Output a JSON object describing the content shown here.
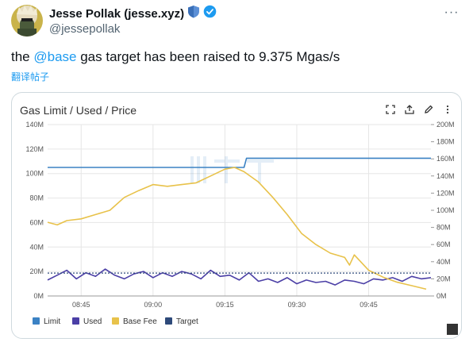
{
  "author": {
    "name": "Jesse Pollak (jesse.xyz)",
    "handle": "@jessepollak"
  },
  "tweet": {
    "prefix": "the ",
    "mention": "@base",
    "suffix": " gas target has been raised to 9.375 Mgas/s",
    "translate": "翻译帖子"
  },
  "colors": {
    "limit": "#3b82c4",
    "used": "#4b3fa6",
    "base_fee": "#e8c24a",
    "target": "#2e4a7a"
  },
  "chart_data": {
    "type": "line",
    "title": "Gas Limit / Used / Price",
    "x_ticks": [
      "08:45",
      "09:00",
      "09:15",
      "09:30",
      "09:45"
    ],
    "x_tick_minutes": [
      15,
      30,
      45,
      60,
      75
    ],
    "xlim_minutes": [
      8,
      88
    ],
    "y_left_ticks": [
      "0M",
      "20M",
      "40M",
      "60M",
      "80M",
      "100M",
      "120M",
      "140M"
    ],
    "y_right_ticks": [
      "0M",
      "20M",
      "40M",
      "60M",
      "80M",
      "100M",
      "120M",
      "140M",
      "160M",
      "180M",
      "200M"
    ],
    "ylim_left": [
      0,
      140000000
    ],
    "ylim_right": [
      0,
      200000000
    ],
    "legend": [
      "Limit",
      "Used",
      "Base Fee",
      "Target"
    ],
    "legend_position": "bottom-left",
    "series": [
      {
        "name": "Limit",
        "axis": "left",
        "x": [
          8,
          49,
          49.5,
          88
        ],
        "y": [
          105000000,
          105000000,
          112500000,
          112500000
        ]
      },
      {
        "name": "Used",
        "axis": "left",
        "x": [
          8,
          10,
          12,
          14,
          16,
          18,
          20,
          22,
          24,
          26,
          28,
          30,
          32,
          34,
          36,
          38,
          40,
          42,
          44,
          46,
          48,
          50,
          52,
          54,
          56,
          58,
          60,
          62,
          64,
          66,
          68,
          70,
          72,
          74,
          76,
          78,
          80,
          82,
          84,
          86,
          88
        ],
        "y": [
          13000000,
          17000000,
          21000000,
          14000000,
          19000000,
          16000000,
          22000000,
          17000000,
          14000000,
          18000000,
          20000000,
          15000000,
          19000000,
          16000000,
          20000000,
          18000000,
          14000000,
          21000000,
          16000000,
          17000000,
          13000000,
          19000000,
          12000000,
          14000000,
          11000000,
          15000000,
          10000000,
          13000000,
          11000000,
          12000000,
          9000000,
          13000000,
          12000000,
          10000000,
          14000000,
          13000000,
          15000000,
          12000000,
          16000000,
          14000000,
          15000000
        ]
      },
      {
        "name": "Base Fee",
        "axis": "right",
        "x": [
          8,
          10,
          12,
          15,
          18,
          21,
          24,
          27,
          30,
          33,
          36,
          39,
          42,
          45,
          47,
          49,
          52,
          55,
          58,
          61,
          64,
          67,
          70,
          71,
          72,
          75,
          78,
          81,
          84,
          87
        ],
        "y": [
          86000000,
          83000000,
          88000000,
          90000000,
          95000000,
          100000000,
          115000000,
          123000000,
          130000000,
          128000000,
          130000000,
          132000000,
          140000000,
          148000000,
          150000000,
          145000000,
          133000000,
          115000000,
          95000000,
          73000000,
          60000000,
          50000000,
          45000000,
          36000000,
          48000000,
          30000000,
          22000000,
          16000000,
          12000000,
          8000000
        ]
      },
      {
        "name": "Target",
        "axis": "left",
        "x": [
          8,
          88
        ],
        "y": [
          18750000,
          18750000
        ]
      }
    ]
  }
}
